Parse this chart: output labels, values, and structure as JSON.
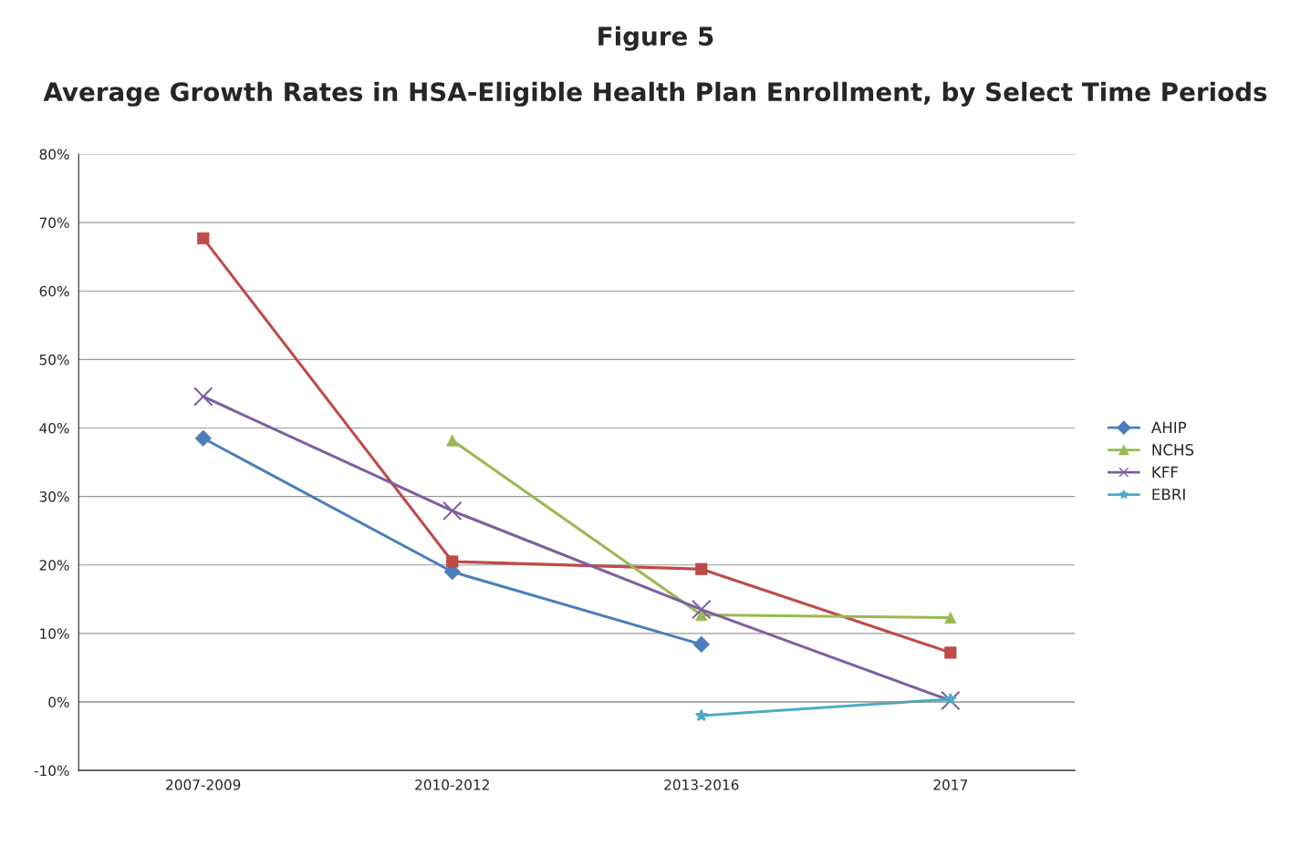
{
  "chart_data": {
    "type": "line",
    "title": "Figure 5",
    "subtitle": "Average Growth Rates in HSA-Eligible Health Plan Enrollment, by Select Time Periods",
    "categories": [
      "2007-2009",
      "2010-2012",
      "2013-2016",
      "2017"
    ],
    "series": [
      {
        "name": "AHIP",
        "color": "#4a7ebb",
        "marker": "diamond",
        "values": [
          38.5,
          19.0,
          8.4,
          null
        ]
      },
      {
        "color": "#be4b48",
        "marker": "square",
        "values": [
          67.7,
          20.5,
          19.4,
          7.2
        ]
      },
      {
        "name": "NCHS",
        "color": "#98b954",
        "marker": "triangle",
        "values": [
          null,
          38.2,
          12.7,
          12.3
        ]
      },
      {
        "name": "KFF",
        "color": "#7d60a0",
        "marker": "cross",
        "values": [
          44.6,
          27.9,
          13.5,
          0.2
        ]
      },
      {
        "name": "EBRI",
        "color": "#4bacc6",
        "marker": "star",
        "values": [
          null,
          null,
          -2.0,
          0.4
        ]
      }
    ],
    "ylim": [
      -10,
      80
    ],
    "yticks": [
      {
        "value": -10,
        "label": "-10%"
      },
      {
        "value": 0,
        "label": "0%"
      },
      {
        "value": 10,
        "label": "10%"
      },
      {
        "value": 20,
        "label": "20%"
      },
      {
        "value": 30,
        "label": "30%"
      },
      {
        "value": 40,
        "label": "40%"
      },
      {
        "value": 50,
        "label": "50%"
      },
      {
        "value": 60,
        "label": "60%"
      },
      {
        "value": 70,
        "label": "70%"
      },
      {
        "value": 80,
        "label": "80%"
      }
    ],
    "grid": "y",
    "legend": "right"
  }
}
